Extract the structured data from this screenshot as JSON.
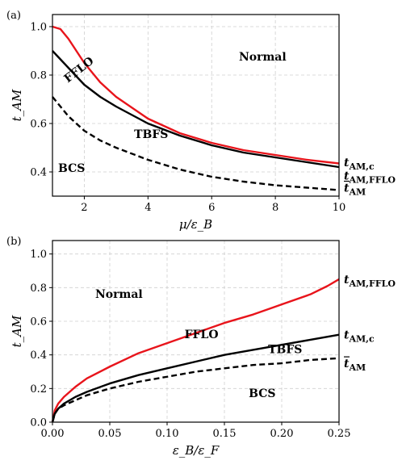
{
  "chart_data": [
    {
      "type": "line",
      "panel_tag": "(a)",
      "xlabel": "μ/ε_B",
      "ylabel": "t_AM",
      "xlim": [
        1,
        10
      ],
      "ylim": [
        0.3,
        1.05
      ],
      "xticks": [
        2,
        4,
        6,
        8,
        10
      ],
      "yticks": [
        0.4,
        0.6,
        0.8,
        1.0
      ],
      "grid": true,
      "series": [
        {
          "name": "t_AM,FFLO",
          "color": "#e8141b",
          "dash": "solid",
          "x": [
            1.0,
            1.25,
            1.5,
            2.0,
            2.5,
            3.0,
            4.0,
            5.0,
            6.0,
            7.0,
            8.0,
            9.0,
            10.0
          ],
          "y": [
            1.0,
            0.99,
            0.95,
            0.85,
            0.77,
            0.71,
            0.62,
            0.56,
            0.52,
            0.49,
            0.47,
            0.45,
            0.435
          ]
        },
        {
          "name": "t_AM,c",
          "color": "#000000",
          "dash": "solid",
          "x": [
            1.0,
            1.5,
            2.0,
            2.5,
            3.0,
            4.0,
            5.0,
            6.0,
            7.0,
            8.0,
            9.0,
            10.0
          ],
          "y": [
            0.9,
            0.83,
            0.76,
            0.71,
            0.67,
            0.6,
            0.55,
            0.51,
            0.48,
            0.46,
            0.44,
            0.42
          ]
        },
        {
          "name": "t̄_AM",
          "color": "#000000",
          "dash": "dashed",
          "x": [
            1.0,
            1.5,
            2.0,
            2.5,
            3.0,
            4.0,
            5.0,
            6.0,
            7.0,
            8.0,
            9.0,
            10.0
          ],
          "y": [
            0.71,
            0.63,
            0.57,
            0.53,
            0.5,
            0.45,
            0.41,
            0.38,
            0.36,
            0.345,
            0.335,
            0.325
          ]
        }
      ],
      "curve_labels": [
        {
          "text": "t",
          "sub": "AM,FFLO",
          "bar": false,
          "x": 10.0,
          "y": 0.435,
          "dy": -0.05
        },
        {
          "text": "t",
          "sub": "AM,c",
          "bar": false,
          "x": 10.0,
          "y": 0.42,
          "dy": 0.02
        },
        {
          "text": "t",
          "sub": "AM",
          "bar": true,
          "x": 10.0,
          "y": 0.325,
          "dy": 0.01
        }
      ],
      "annotations": [
        {
          "text": "Normal",
          "x": 7.6,
          "y": 0.86,
          "rotate": 0
        },
        {
          "text": "FFLO",
          "x": 1.9,
          "y": 0.81,
          "rotate": -38
        },
        {
          "text": "TBFS",
          "x": 4.1,
          "y": 0.54,
          "rotate": 0
        },
        {
          "text": "BCS",
          "x": 1.6,
          "y": 0.4,
          "rotate": 0
        }
      ]
    },
    {
      "type": "line",
      "panel_tag": "(b)",
      "xlabel": "ε_B/ε_F",
      "ylabel": "t_AM",
      "xlim": [
        0.0,
        0.25
      ],
      "ylim": [
        0.0,
        1.08
      ],
      "xticks": [
        0.0,
        0.05,
        0.1,
        0.15,
        0.2,
        0.25
      ],
      "yticks": [
        0.0,
        0.2,
        0.4,
        0.6,
        0.8,
        1.0
      ],
      "grid": true,
      "series": [
        {
          "name": "t_AM,FFLO",
          "color": "#e8141b",
          "dash": "solid",
          "x": [
            0.0,
            0.002,
            0.005,
            0.01,
            0.02,
            0.03,
            0.05,
            0.075,
            0.1,
            0.125,
            0.15,
            0.175,
            0.2,
            0.225,
            0.24,
            0.25
          ],
          "y": [
            0.0,
            0.07,
            0.11,
            0.15,
            0.21,
            0.26,
            0.33,
            0.41,
            0.47,
            0.53,
            0.59,
            0.64,
            0.7,
            0.76,
            0.81,
            0.85
          ]
        },
        {
          "name": "t_AM,c",
          "color": "#000000",
          "dash": "solid",
          "x": [
            0.0,
            0.002,
            0.005,
            0.01,
            0.02,
            0.03,
            0.05,
            0.075,
            0.1,
            0.125,
            0.15,
            0.175,
            0.2,
            0.225,
            0.25
          ],
          "y": [
            0.0,
            0.05,
            0.08,
            0.11,
            0.15,
            0.18,
            0.23,
            0.28,
            0.32,
            0.36,
            0.4,
            0.43,
            0.46,
            0.49,
            0.52
          ]
        },
        {
          "name": "t̄_AM",
          "color": "#000000",
          "dash": "dashed",
          "x": [
            0.0,
            0.002,
            0.005,
            0.01,
            0.02,
            0.03,
            0.05,
            0.075,
            0.1,
            0.125,
            0.15,
            0.175,
            0.2,
            0.225,
            0.25
          ],
          "y": [
            0.0,
            0.05,
            0.08,
            0.1,
            0.13,
            0.16,
            0.2,
            0.24,
            0.27,
            0.3,
            0.32,
            0.34,
            0.35,
            0.37,
            0.38
          ]
        }
      ],
      "curve_labels": [
        {
          "text": "t",
          "sub": "AM,FFLO",
          "bar": false,
          "x": 0.25,
          "y": 0.85,
          "dy": 0.0
        },
        {
          "text": "t",
          "sub": "AM,c",
          "bar": false,
          "x": 0.25,
          "y": 0.52,
          "dy": 0.0
        },
        {
          "text": "t",
          "sub": "AM",
          "bar": true,
          "x": 0.25,
          "y": 0.38,
          "dy": -0.03
        }
      ],
      "annotations": [
        {
          "text": "Normal",
          "x": 0.058,
          "y": 0.74,
          "rotate": 0
        },
        {
          "text": "FFLO",
          "x": 0.13,
          "y": 0.5,
          "rotate": 0
        },
        {
          "text": "TBFS",
          "x": 0.203,
          "y": 0.41,
          "rotate": 0
        },
        {
          "text": "BCS",
          "x": 0.183,
          "y": 0.15,
          "rotate": 0
        }
      ]
    }
  ]
}
